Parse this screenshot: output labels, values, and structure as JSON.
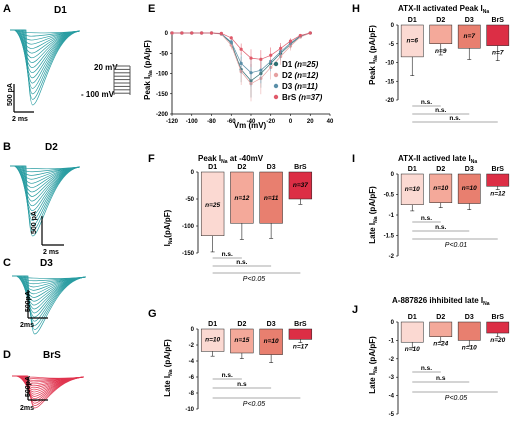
{
  "panelA": {
    "letter": "A",
    "title": "D1",
    "scale_y": "500 pA",
    "scale_x": "2 ms",
    "protocol_top": "20 mV",
    "protocol_bottom": "- 100 mV"
  },
  "panelB": {
    "letter": "B",
    "title": "D2",
    "scale_y": "500 pA",
    "scale_x": "2 ms"
  },
  "panelC": {
    "letter": "C",
    "title": "D3",
    "scale_y": "500pA",
    "scale_x": "2ms"
  },
  "panelD": {
    "letter": "D",
    "title": "BrS",
    "scale_y": "500pA",
    "scale_x": "2ms"
  },
  "panelE": {
    "letter": "E",
    "ylabel": "Peak I",
    "ylabel_sub": "Na",
    "ylabel_unit": " (pA/pF)",
    "xlabel": "Vm (mV)",
    "legend": [
      {
        "group": "D1",
        "n": "(n=25)",
        "color": "#2f6f72"
      },
      {
        "group": "D2",
        "n": "(n=12)",
        "color": "#e6a0a0"
      },
      {
        "group": "D3",
        "n": "(n=11)",
        "color": "#5a8fa8"
      },
      {
        "group": "BrS",
        "n": "(n=37)",
        "color": "#e05a6a"
      }
    ]
  },
  "panelF": {
    "letter": "F",
    "title": "Peak I",
    "title_sub": "Na",
    "title_suffix": " at -40mV",
    "ylabel": "I",
    "ylabel_sub": "Na",
    "ylabel_unit": "(pA/pF)",
    "p_text": "P<0.05"
  },
  "panelG": {
    "letter": "G",
    "ylabel": "Late I",
    "ylabel_sub": "Na",
    "ylabel_unit": " (pA/pF)",
    "p_text": "P<0.05"
  },
  "panelH": {
    "letter": "H",
    "title": "ATX-II activated Peak I",
    "title_sub": "Na",
    "ylabel": "Peak I",
    "ylabel_sub": "Na",
    "ylabel_unit": " (pA/pF)"
  },
  "panelI": {
    "letter": "I",
    "title": "ATX-II actived late I",
    "title_sub": "Na",
    "ylabel": "Late I",
    "ylabel_sub": "Na",
    "ylabel_unit": " (pA/pF)",
    "p_text": "P<0.01"
  },
  "panelJ": {
    "letter": "J",
    "title": "A-887826 ihhibited late I",
    "title_sub": "Na",
    "ylabel": "Late I",
    "ylabel_sub": "Na",
    "ylabel_unit": " (pA/pF)",
    "p_text": "P<0.05"
  },
  "ns_label": "n.s.",
  "ns_label_alt": "n.s",
  "chart_data": [
    {
      "id": "E",
      "type": "line",
      "xlabel": "Vm (mV)",
      "ylabel": "Peak INa (pA/pF)",
      "xlim": [
        -120,
        40
      ],
      "ylim": [
        -200,
        0
      ],
      "x_ticks": [
        -120,
        -100,
        -80,
        -60,
        -40,
        -20,
        0,
        20,
        40
      ],
      "y_ticks": [
        0,
        -50,
        -100,
        -150,
        -200
      ],
      "x": [
        -120,
        -110,
        -100,
        -90,
        -80,
        -70,
        -60,
        -50,
        -40,
        -30,
        -20,
        -10,
        0,
        10,
        20
      ],
      "series": [
        {
          "name": "D1 (n=25)",
          "color": "#2f6f72",
          "values": [
            0,
            0,
            0,
            0,
            0,
            -2,
            -25,
            -90,
            -118,
            -100,
            -75,
            -50,
            -28,
            -8,
            0
          ]
        },
        {
          "name": "D2 (n=12)",
          "color": "#e6a0a0",
          "values": [
            0,
            0,
            0,
            0,
            0,
            -3,
            -30,
            -95,
            -125,
            -112,
            -85,
            -58,
            -32,
            -10,
            0
          ]
        },
        {
          "name": "D3 (n=11)",
          "color": "#5a8fa8",
          "values": [
            0,
            0,
            0,
            0,
            0,
            -2,
            -22,
            -75,
            -98,
            -92,
            -70,
            -46,
            -25,
            -7,
            0
          ]
        },
        {
          "name": "BrS (n=37)",
          "color": "#e05a6a",
          "values": [
            0,
            0,
            0,
            0,
            0,
            -1,
            -12,
            -40,
            -62,
            -65,
            -55,
            -38,
            -20,
            -6,
            0
          ]
        }
      ]
    },
    {
      "id": "F",
      "type": "bar",
      "title": "Peak INa at -40mV",
      "ylabel": "INa (pA/pF)",
      "ylim": [
        -150,
        0
      ],
      "y_ticks": [
        0,
        -50,
        -100,
        -150
      ],
      "categories": [
        "D1",
        "D2",
        "D3",
        "BrS"
      ],
      "values": [
        -118,
        -95,
        -95,
        -50
      ],
      "errors": [
        30,
        30,
        28,
        10
      ],
      "n_labels": [
        "n=25",
        "n=12",
        "n=11",
        "n=37"
      ],
      "colors": [
        "#fbd9d2",
        "#f4a99a",
        "#e87f6f",
        "#dc2e45"
      ]
    },
    {
      "id": "G",
      "type": "bar",
      "ylabel": "Late INa (pA/pF)",
      "ylim": [
        -10,
        0
      ],
      "y_ticks": [
        0,
        -2,
        -4,
        -6,
        -8,
        -10
      ],
      "categories": [
        "D1",
        "D2",
        "D3",
        "BrS"
      ],
      "values": [
        -2.8,
        -3.0,
        -3.2,
        -1.3
      ],
      "errors": [
        0.6,
        0.7,
        1.0,
        0.4
      ],
      "n_labels": [
        "n=10",
        "n=15",
        "n=10",
        "n=17"
      ],
      "colors": [
        "#fbd9d2",
        "#f4a99a",
        "#e87f6f",
        "#dc2e45"
      ]
    },
    {
      "id": "H",
      "type": "bar",
      "title": "ATX-II activated Peak INa",
      "ylabel": "Peak INa (pA/pF)",
      "ylim": [
        -20,
        0
      ],
      "y_ticks": [
        0,
        -5,
        -10,
        -15,
        -20
      ],
      "categories": [
        "D1",
        "D2",
        "D3",
        "BrS"
      ],
      "values": [
        -8.5,
        -5,
        -6.2,
        -5.5
      ],
      "errors": [
        5,
        3,
        3,
        4
      ],
      "n_labels": [
        "n=6",
        "n=9",
        "n=7",
        "n=7"
      ],
      "colors": [
        "#fbd9d2",
        "#f4a99a",
        "#e87f6f",
        "#dc2e45"
      ]
    },
    {
      "id": "I",
      "type": "bar",
      "title": "ATX-II actived late INa",
      "ylabel": "Late INa (pA/pF)",
      "ylim": [
        -2,
        0
      ],
      "y_ticks": [
        0,
        -0.5,
        -1,
        -1.5,
        -2
      ],
      "categories": [
        "D1",
        "D2",
        "D3",
        "BrS"
      ],
      "values": [
        -0.75,
        -0.7,
        -0.72,
        -0.3
      ],
      "errors": [
        0.15,
        0.12,
        0.15,
        0.08
      ],
      "n_labels": [
        "n=10",
        "n=10",
        "n=10",
        "n=12"
      ],
      "colors": [
        "#fbd9d2",
        "#f4a99a",
        "#e87f6f",
        "#dc2e45"
      ]
    },
    {
      "id": "J",
      "type": "bar",
      "title": "A-887826 ihhibited late INa",
      "ylabel": "Late INa (pA/pF)",
      "ylim": [
        -5,
        0
      ],
      "y_ticks": [
        0,
        -1,
        -2,
        -3,
        -4,
        -5
      ],
      "categories": [
        "D1",
        "D2",
        "D3",
        "BrS"
      ],
      "values": [
        -1.1,
        -0.8,
        -1.0,
        -0.6
      ],
      "errors": [
        0.3,
        0.25,
        0.3,
        0.2
      ],
      "n_labels": [
        "n=10",
        "n=24",
        "n=10",
        "n=20"
      ],
      "colors": [
        "#fbd9d2",
        "#f4a99a",
        "#e87f6f",
        "#dc2e45"
      ]
    }
  ]
}
